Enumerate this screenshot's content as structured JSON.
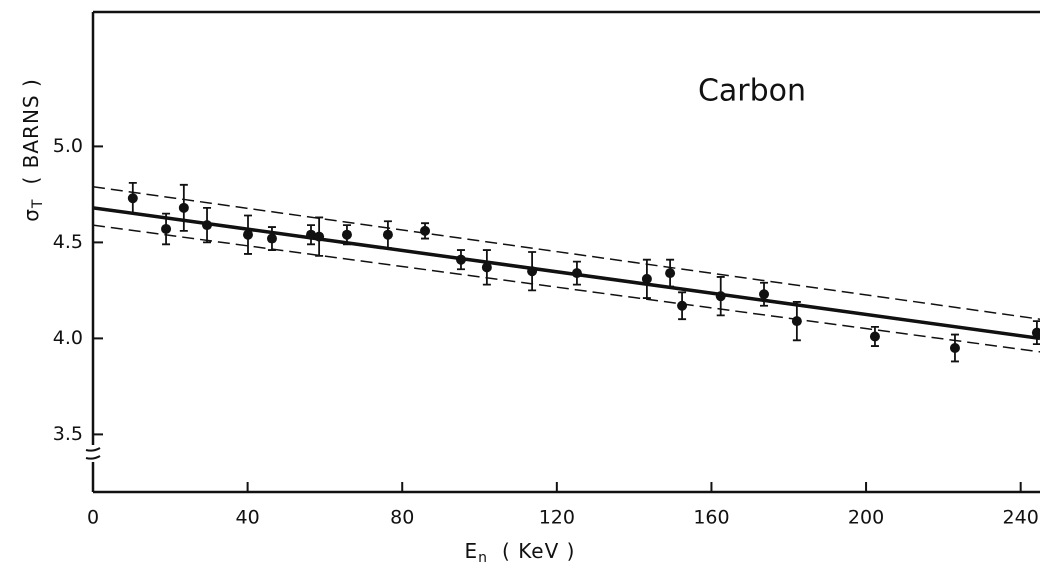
{
  "chart_data": {
    "type": "scatter",
    "annotation": "Carbon",
    "xlabel_symbol": "E",
    "xlabel_subscript": "n",
    "xlabel_unit": "( KeV )",
    "ylabel_symbol": "σ",
    "ylabel_subscript": "T",
    "ylabel_unit": "( BARNS )",
    "xlim": [
      0,
      245
    ],
    "ylim": [
      3.2,
      5.7
    ],
    "xticks": [
      0,
      40,
      80,
      120,
      160,
      200,
      240
    ],
    "yticks": [
      3.5,
      {
        "value": 4,
        "label": "4.0"
      },
      4.5,
      {
        "value": 5,
        "label": "5.0"
      }
    ],
    "color": "#111111",
    "points": {
      "x": [
        10.3,
        18.9,
        23.5,
        29.5,
        40.1,
        46.3,
        56.4,
        58.5,
        65.7,
        76.3,
        85.9,
        95.2,
        101.9,
        113.6,
        125.2,
        143.3,
        149.3,
        152.4,
        162.4,
        173.6,
        182.1,
        202.3,
        223.0,
        244.2
      ],
      "values": [
        4.73,
        4.57,
        4.68,
        4.59,
        4.54,
        4.52,
        4.54,
        4.53,
        4.54,
        4.54,
        4.56,
        4.41,
        4.37,
        4.35,
        4.34,
        4.31,
        4.34,
        4.17,
        4.22,
        4.23,
        4.09,
        4.01,
        3.95,
        4.03
      ],
      "errors": [
        0.08,
        0.08,
        0.12,
        0.09,
        0.1,
        0.06,
        0.05,
        0.1,
        0.05,
        0.07,
        0.04,
        0.05,
        0.09,
        0.1,
        0.06,
        0.1,
        0.07,
        0.07,
        0.1,
        0.06,
        0.1,
        0.05,
        0.07,
        0.06
      ]
    },
    "lines": [
      {
        "style": "solid",
        "x": [
          0,
          245
        ],
        "values": [
          4.68,
          4.0
        ]
      },
      {
        "style": "dashed",
        "x": [
          0,
          245
        ],
        "values": [
          4.79,
          4.1
        ]
      },
      {
        "style": "dashed",
        "x": [
          0,
          245
        ],
        "values": [
          4.59,
          3.93
        ]
      }
    ]
  }
}
